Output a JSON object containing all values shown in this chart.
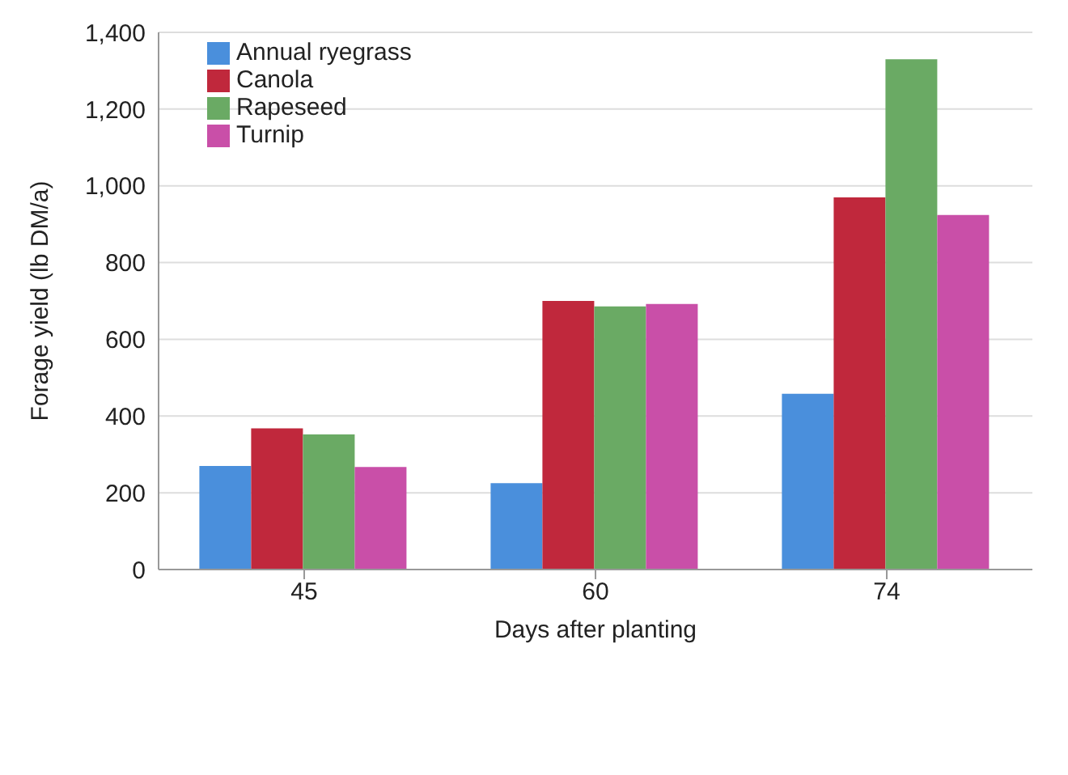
{
  "chart_data": {
    "type": "bar",
    "xlabel": "Days after planting",
    "ylabel": "Forage yield (lb DM/a)",
    "categories": [
      "45",
      "60",
      "74"
    ],
    "series": [
      {
        "name": "Annual ryegrass",
        "color": "#4a8fdc",
        "values": [
          270,
          225,
          458
        ]
      },
      {
        "name": "Canola",
        "color": "#c0283c",
        "values": [
          368,
          700,
          970
        ]
      },
      {
        "name": "Rapeseed",
        "color": "#6aaa64",
        "values": [
          352,
          686,
          1330
        ]
      },
      {
        "name": "Turnip",
        "color": "#c94fa8",
        "values": [
          267,
          692,
          924
        ]
      }
    ],
    "ylim": [
      0,
      1400
    ],
    "yticks": [
      0,
      200,
      400,
      600,
      800,
      {
        "value": 1000,
        "label": "1,000"
      },
      {
        "value": 1200,
        "label": "1,200"
      },
      {
        "value": 1400,
        "label": "1,400"
      }
    ],
    "grid": "y",
    "legend": "top left"
  }
}
